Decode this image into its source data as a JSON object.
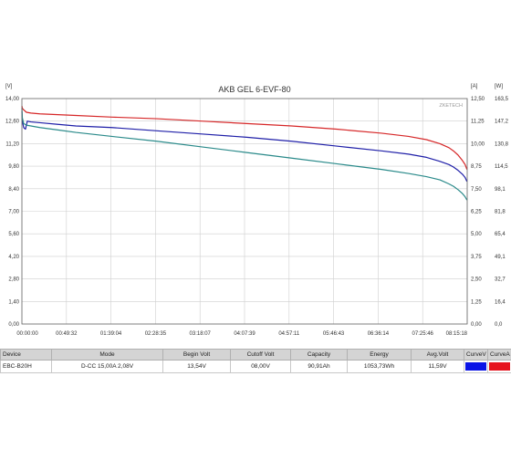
{
  "chart_data": {
    "type": "line",
    "title": "AKB GEL  6-EVF-80",
    "watermark": "ZKETECH",
    "left_axis": {
      "unit": "[V]",
      "ticks": [
        "14,00",
        "12,60",
        "11,20",
        "9,80",
        "8,40",
        "7,00",
        "5,60",
        "4,20",
        "2,80",
        "1,40",
        "0,00"
      ],
      "ylim": [
        0,
        14
      ]
    },
    "right_axis_1": {
      "unit": "[A]",
      "ticks": [
        "12,50",
        "11,25",
        "10,00",
        "8,75",
        "7,50",
        "6,25",
        "5,00",
        "3,75",
        "2,50",
        "1,25",
        "0,00"
      ],
      "ylim": [
        0,
        12.5
      ]
    },
    "right_axis_2": {
      "unit": "[W]",
      "ticks": [
        "163,5",
        "147,2",
        "130,8",
        "114,5",
        "98,1",
        "81,8",
        "65,4",
        "49,1",
        "32,7",
        "16,4",
        "0,0"
      ],
      "ylim": [
        0,
        163.5
      ]
    },
    "x_ticks": [
      "00:00:00",
      "00:49:32",
      "01:39:04",
      "02:28:35",
      "03:18:07",
      "04:07:39",
      "04:57:11",
      "05:46:43",
      "06:36:14",
      "07:25:46",
      "08:15:18"
    ],
    "x_range_minutes": [
      0,
      495.3
    ],
    "series": [
      {
        "axis": "left",
        "color": "#d62728",
        "x": [
          0,
          0.5,
          2,
          5,
          10,
          20,
          40,
          60,
          100,
          150,
          200,
          250,
          300,
          350,
          400,
          430,
          450,
          465,
          475,
          480,
          485,
          490,
          493,
          495
        ],
        "y": [
          13.54,
          13.4,
          13.3,
          13.15,
          13.1,
          13.05,
          13.0,
          12.95,
          12.85,
          12.75,
          12.6,
          12.45,
          12.3,
          12.1,
          11.85,
          11.65,
          11.45,
          11.2,
          10.95,
          10.75,
          10.5,
          10.15,
          9.9,
          9.6
        ]
      },
      {
        "axis": "left",
        "color": "#1f1fa8",
        "x": [
          0,
          0.5,
          2,
          4,
          6,
          10,
          20,
          40,
          60,
          100,
          150,
          200,
          250,
          300,
          350,
          400,
          430,
          450,
          465,
          475,
          480,
          485,
          490,
          493,
          495
        ],
        "y": [
          13.2,
          12.6,
          12.2,
          12.1,
          12.6,
          12.55,
          12.5,
          12.4,
          12.3,
          12.2,
          12.0,
          11.8,
          11.6,
          11.35,
          11.05,
          10.75,
          10.55,
          10.35,
          10.1,
          9.9,
          9.75,
          9.55,
          9.3,
          9.1,
          8.85
        ]
      },
      {
        "axis": "left",
        "color": "#2a8a8a",
        "x": [
          0,
          0.5,
          2,
          5,
          10,
          20,
          40,
          60,
          100,
          150,
          200,
          250,
          300,
          350,
          400,
          430,
          450,
          465,
          475,
          480,
          485,
          490,
          493,
          495
        ],
        "y": [
          13.4,
          12.8,
          12.45,
          12.35,
          12.3,
          12.2,
          12.05,
          11.9,
          11.65,
          11.35,
          11.0,
          10.65,
          10.3,
          9.95,
          9.6,
          9.35,
          9.15,
          8.95,
          8.7,
          8.55,
          8.35,
          8.1,
          7.9,
          7.7
        ]
      }
    ]
  },
  "info_table": {
    "headers": [
      "Device",
      "Mode",
      "Begin Volt",
      "Cutoff Volt",
      "Capacity",
      "Energy",
      "Avg.Volt",
      "CurveV",
      "CurveA"
    ],
    "values": [
      "EBC-B20H",
      "D-CC  15,00A  2,08V",
      "13,54V",
      "08,00V",
      "90,91Ah",
      "1053,73Wh",
      "11,59V"
    ],
    "swatch_colors": {
      "curve_v": "#0a14e6",
      "curve_a": "#e6141e"
    }
  }
}
